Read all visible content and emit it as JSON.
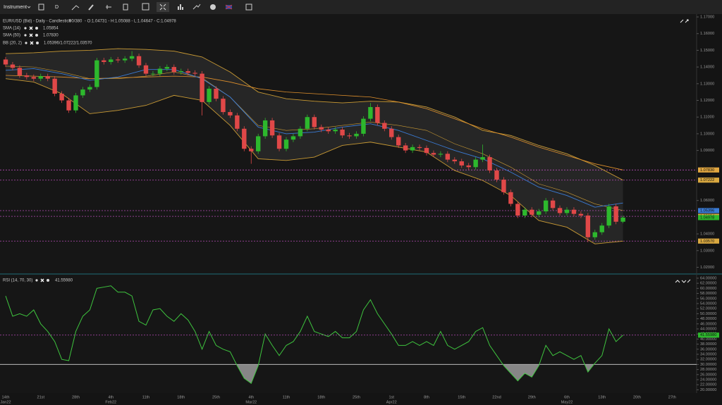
{
  "toolbar": {
    "instrument": "Instrument",
    "interval": "D"
  },
  "chart_data": [
    {
      "type": "candlestick",
      "title": "EUR/USD (Bid) - Daily - Candlestick",
      "counter": "90/380",
      "ohlc": "- O:1.04731 - H:1.05088 - L:1.04647 - C:1.04978",
      "up_color": "#2db82d",
      "down_color": "#e04848",
      "open": [
        1.1445,
        1.1415,
        1.1395,
        1.135,
        1.134,
        1.133,
        1.1345,
        1.133,
        1.124,
        1.12,
        1.114,
        1.123,
        1.1265,
        1.128,
        1.144,
        1.143,
        1.1445,
        1.144,
        1.145,
        1.1465,
        1.141,
        1.136,
        1.136,
        1.139,
        1.14,
        1.137,
        1.1375,
        1.1365,
        1.136,
        1.119,
        1.127,
        1.121,
        1.113,
        1.111,
        1.103,
        1.091,
        1.0895,
        1.0985,
        1.108,
        1.099,
        1.091,
        1.0965,
        1.0985,
        1.103,
        1.11,
        1.104,
        1.1025,
        1.1015,
        1.1025,
        1.099,
        1.0985,
        1.1,
        1.109,
        1.116,
        1.1065,
        1.103,
        1.098,
        1.093,
        1.09,
        1.092,
        1.0915,
        1.0885,
        1.0875,
        1.088,
        1.0845,
        1.0835,
        1.081,
        1.08,
        1.0845,
        1.086,
        1.078,
        1.0725,
        1.065,
        1.058,
        1.051,
        1.0545,
        1.0515,
        1.0535,
        1.06,
        1.0555,
        1.0525,
        1.0545,
        1.052,
        1.051,
        1.038,
        1.041,
        1.045,
        1.0565,
        1.04731
      ],
      "high": [
        1.146,
        1.143,
        1.141,
        1.1365,
        1.1355,
        1.136,
        1.136,
        1.1345,
        1.1255,
        1.1215,
        1.1245,
        1.128,
        1.1295,
        1.1455,
        1.1455,
        1.146,
        1.146,
        1.1465,
        1.1495,
        1.148,
        1.1425,
        1.1375,
        1.1405,
        1.1415,
        1.1415,
        1.139,
        1.139,
        1.138,
        1.1375,
        1.1285,
        1.1285,
        1.1225,
        1.1145,
        1.1125,
        1.1045,
        1.0925,
        1.1,
        1.1095,
        1.1095,
        1.1005,
        1.098,
        1.1,
        1.1045,
        1.1115,
        1.1115,
        1.1055,
        1.104,
        1.104,
        1.104,
        1.1005,
        1.1015,
        1.1105,
        1.1185,
        1.1175,
        1.108,
        1.1045,
        1.0995,
        1.0945,
        1.0935,
        1.0935,
        1.093,
        1.09,
        1.0895,
        1.0895,
        1.086,
        1.085,
        1.0825,
        1.086,
        1.0935,
        1.0875,
        1.0795,
        1.074,
        1.0665,
        1.0595,
        1.056,
        1.056,
        1.055,
        1.0615,
        1.0615,
        1.057,
        1.056,
        1.056,
        1.0535,
        1.0525,
        1.0425,
        1.0465,
        1.058,
        1.058,
        1.05088
      ],
      "low": [
        1.14,
        1.138,
        1.1335,
        1.1325,
        1.1315,
        1.1315,
        1.1315,
        1.1225,
        1.1185,
        1.1125,
        1.1125,
        1.1215,
        1.125,
        1.1265,
        1.1415,
        1.1415,
        1.1425,
        1.1425,
        1.1435,
        1.1395,
        1.1345,
        1.1345,
        1.1345,
        1.1375,
        1.1355,
        1.1355,
        1.135,
        1.1345,
        1.111,
        1.1175,
        1.1195,
        1.1115,
        1.1095,
        1.1015,
        1.0895,
        1.082,
        1.088,
        1.097,
        1.0975,
        1.0895,
        1.0895,
        1.095,
        1.097,
        1.1015,
        1.1025,
        1.101,
        1.1,
        1.1,
        1.0975,
        1.097,
        1.097,
        1.0985,
        1.1075,
        1.105,
        1.1015,
        1.0965,
        1.0915,
        1.0885,
        1.0885,
        1.09,
        1.087,
        1.086,
        1.086,
        1.083,
        1.082,
        1.0795,
        1.0785,
        1.0785,
        1.083,
        1.0765,
        1.071,
        1.0635,
        1.0565,
        1.0495,
        1.0495,
        1.05,
        1.05,
        1.052,
        1.054,
        1.051,
        1.051,
        1.0505,
        1.0495,
        1.035,
        1.0365,
        1.0395,
        1.0435,
        1.0458,
        1.04647
      ],
      "close": [
        1.1415,
        1.1395,
        1.135,
        1.134,
        1.133,
        1.1345,
        1.133,
        1.124,
        1.12,
        1.114,
        1.123,
        1.1265,
        1.128,
        1.144,
        1.143,
        1.1445,
        1.144,
        1.145,
        1.1465,
        1.141,
        1.136,
        1.136,
        1.139,
        1.14,
        1.137,
        1.1375,
        1.1365,
        1.136,
        1.119,
        1.127,
        1.121,
        1.113,
        1.111,
        1.103,
        1.091,
        1.0895,
        1.0985,
        1.108,
        1.099,
        1.091,
        1.0965,
        1.0985,
        1.103,
        1.11,
        1.104,
        1.1025,
        1.1015,
        1.1025,
        1.099,
        1.0985,
        1.1,
        1.109,
        1.116,
        1.1065,
        1.103,
        1.098,
        1.093,
        1.09,
        1.092,
        1.0915,
        1.0885,
        1.0875,
        1.088,
        1.0845,
        1.0835,
        1.081,
        1.08,
        1.0845,
        1.086,
        1.078,
        1.0725,
        1.065,
        1.058,
        1.051,
        1.0545,
        1.0515,
        1.0535,
        1.06,
        1.0555,
        1.0525,
        1.0545,
        1.052,
        1.051,
        1.038,
        1.041,
        1.045,
        1.0565,
        1.0473,
        1.04978
      ],
      "overlay_x": [
        0,
        4,
        8,
        12,
        16,
        20,
        24,
        28,
        32,
        36,
        40,
        44,
        48,
        52,
        56,
        60,
        64,
        68,
        72,
        76,
        80,
        84,
        88
      ],
      "indicators": [
        {
          "name": "SMA (14)",
          "reading": "1.05854",
          "color": "#3a7bd5",
          "values": [
            1.138,
            1.139,
            1.136,
            1.132,
            1.134,
            1.1385,
            1.1385,
            1.133,
            1.122,
            1.104,
            1.1,
            1.101,
            1.104,
            1.106,
            1.102,
            1.096,
            1.09,
            1.085,
            1.077,
            1.068,
            1.063,
            1.056,
            1.0585
          ]
        },
        {
          "name": "SMA (50)",
          "reading": "1.07830",
          "color": "#e0902c",
          "values": [
            1.135,
            1.1345,
            1.134,
            1.133,
            1.1335,
            1.134,
            1.1345,
            1.134,
            1.131,
            1.127,
            1.125,
            1.124,
            1.123,
            1.122,
            1.119,
            1.115,
            1.109,
            1.103,
            1.098,
            1.092,
            1.087,
            1.082,
            1.0783
          ]
        },
        {
          "name": "BB (20, 2)",
          "reading": "1.05396/1.07222/1.03570",
          "color": "#c99a34",
          "fill": "#262626",
          "upper": [
            1.148,
            1.1485,
            1.1495,
            1.15,
            1.151,
            1.1505,
            1.1495,
            1.146,
            1.137,
            1.125,
            1.121,
            1.1195,
            1.1185,
            1.1195,
            1.119,
            1.116,
            1.11,
            1.102,
            1.099,
            1.093,
            1.088,
            1.081,
            1.0722
          ],
          "middle": [
            1.1405,
            1.14,
            1.137,
            1.133,
            1.133,
            1.1345,
            1.137,
            1.1335,
            1.122,
            1.105,
            1.102,
            1.103,
            1.105,
            1.107,
            1.105,
            1.102,
            1.094,
            1.088,
            1.08,
            1.07,
            1.065,
            1.058,
            1.054
          ],
          "lower": [
            1.133,
            1.131,
            1.124,
            1.112,
            1.114,
            1.117,
            1.123,
            1.12,
            1.105,
            1.085,
            1.084,
            1.086,
            1.093,
            1.095,
            1.092,
            1.089,
            1.078,
            1.072,
            1.063,
            1.048,
            1.044,
            1.034,
            1.0357
          ]
        }
      ],
      "price_tags": [
        {
          "value": 1.0783,
          "label": "1.07830",
          "color": "#e0a640",
          "line": true
        },
        {
          "value": 1.07222,
          "label": "1.07222",
          "color": "#d9a840",
          "line": true
        },
        {
          "value": 1.05396,
          "label": "1.05396",
          "color": "#3a7bd5",
          "line": true
        },
        {
          "value": 1.05054,
          "label": "1.05054",
          "color": "#d9a840",
          "line": true
        },
        {
          "value": 1.04978,
          "label": "1.04978",
          "color": "#2db82d",
          "line": false
        },
        {
          "value": 1.0357,
          "label": "1.03570",
          "color": "#d9a840",
          "line": true
        }
      ],
      "ylim": [
        1.0164,
        1.1717
      ],
      "yticks": [
        {
          "value": 1.17,
          "label": "1.17000"
        },
        {
          "value": 1.16,
          "label": "1.16000"
        },
        {
          "value": 1.15,
          "label": "1.15000"
        },
        {
          "value": 1.14,
          "label": "1.14000"
        },
        {
          "value": 1.13,
          "label": "1.13000"
        },
        {
          "value": 1.12,
          "label": "1.12000"
        },
        {
          "value": 1.11,
          "label": "1.11000"
        },
        {
          "value": 1.1,
          "label": "1.10000"
        },
        {
          "value": 1.09,
          "label": "1.09000"
        },
        {
          "value": 1.06,
          "label": "1.06000"
        },
        {
          "value": 1.04,
          "label": "1.04000"
        },
        {
          "value": 1.03,
          "label": "1.03000"
        },
        {
          "value": 1.02,
          "label": "1.02000"
        }
      ],
      "x_labels": [
        {
          "day": "14th",
          "month": "Jan22"
        },
        {
          "day": "21st"
        },
        {
          "day": "28th"
        },
        {
          "day": "4th",
          "month": "Feb22"
        },
        {
          "day": "11th"
        },
        {
          "day": "18th"
        },
        {
          "day": "25th"
        },
        {
          "day": "4th",
          "month": "Mar22"
        },
        {
          "day": "11th"
        },
        {
          "day": "18th"
        },
        {
          "day": "25th"
        },
        {
          "day": "1st",
          "month": "Apr22"
        },
        {
          "day": "8th"
        },
        {
          "day": "15th"
        },
        {
          "day": "22nd"
        },
        {
          "day": "29th"
        },
        {
          "day": "6th",
          "month": "May22"
        },
        {
          "day": "13th"
        },
        {
          "day": "20th"
        },
        {
          "day": "27th"
        }
      ]
    },
    {
      "type": "line",
      "name": "RSI (14, 70, 30)",
      "reading": "41.55980",
      "color": "#3ec43e",
      "level": 30,
      "level_fill": "#9a9a9a",
      "values": [
        57,
        49,
        50,
        49,
        51.5,
        46,
        43,
        39,
        32,
        31.5,
        43,
        49,
        51.5,
        60,
        60.5,
        61,
        58.5,
        58.5,
        57,
        47,
        45.5,
        51.5,
        52,
        49,
        47,
        50,
        47.5,
        43,
        36,
        43,
        37.5,
        36,
        35,
        29.5,
        24.5,
        22.5,
        29.5,
        42,
        37.5,
        33.5,
        37.5,
        39,
        43,
        49,
        43,
        42,
        41,
        43,
        40.5,
        40.5,
        43,
        51.5,
        55.5,
        50,
        46,
        42,
        37.5,
        37.5,
        39,
        37.5,
        39,
        37.5,
        43,
        37.5,
        36,
        37.5,
        39,
        43,
        44.5,
        37.5,
        33.5,
        29.5,
        26.5,
        23.5,
        26.5,
        25,
        29.5,
        37.5,
        33.5,
        35,
        33.5,
        32,
        33.5,
        27,
        30.5,
        33.5,
        44,
        39,
        41.5598
      ],
      "last_tag": {
        "value": 41.5598,
        "label": "41.55980",
        "color": "#2db82d"
      },
      "ylim": [
        19,
        65.1
      ],
      "yticks": [
        {
          "value": 64,
          "label": "64.00000"
        },
        {
          "value": 62,
          "label": "62.00000"
        },
        {
          "value": 60,
          "label": "60.00000"
        },
        {
          "value": 58,
          "label": "58.00000"
        },
        {
          "value": 56,
          "label": "56.00000"
        },
        {
          "value": 54,
          "label": "54.00000"
        },
        {
          "value": 52,
          "label": "52.00000"
        },
        {
          "value": 50,
          "label": "50.00000"
        },
        {
          "value": 48,
          "label": "48.00000"
        },
        {
          "value": 46,
          "label": "46.00000"
        },
        {
          "value": 44,
          "label": "44.00000"
        },
        {
          "value": 42,
          "label": "42.00000"
        },
        {
          "value": 40,
          "label": "40.00000"
        },
        {
          "value": 38,
          "label": "38.00000"
        },
        {
          "value": 36,
          "label": "36.00000"
        },
        {
          "value": 34,
          "label": "34.00000"
        },
        {
          "value": 32,
          "label": "32.00000"
        },
        {
          "value": 30,
          "label": "30.00000"
        },
        {
          "value": 28,
          "label": "28.00000"
        },
        {
          "value": 26,
          "label": "26.00000"
        },
        {
          "value": 24,
          "label": "24.00000"
        },
        {
          "value": 22,
          "label": "22.00000"
        },
        {
          "value": 20,
          "label": "20.00000"
        }
      ]
    }
  ]
}
